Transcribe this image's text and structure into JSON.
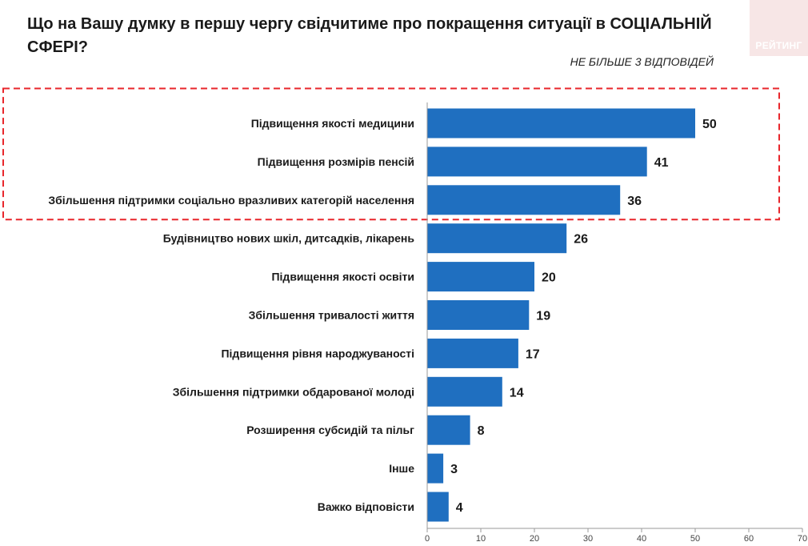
{
  "header": {
    "title": "Що на Вашу думку в першу чергу свідчитиме про покращення ситуації в СОЦІАЛЬНІЙ СФЕРІ?",
    "note": "НЕ БІЛЬШЕ 3 ВІДПОВІДЕЙ",
    "logo_text": "РЕЙТИНГ"
  },
  "colors": {
    "bar": "#1f6fc0",
    "highlight_border": "#e8262b",
    "axis": "#9a9a9a"
  },
  "chart_data": {
    "type": "bar",
    "orientation": "horizontal",
    "title": "Що на Вашу думку в першу чергу свідчитиме про покращення ситуації в СОЦІАЛЬНІЙ СФЕРІ?",
    "categories": [
      "Підвищення якості медицини",
      "Підвищення розмірів пенсій",
      "Збільшення підтримки соціально вразливих категорій населення",
      "Будівництво нових шкіл, дитсадків, лікарень",
      "Підвищення якості освіти",
      "Збільшення тривалості життя",
      "Підвищення рівня народжуваності",
      "Збільшення підтримки обдарованої молоді",
      "Розширення субсидій та пільг",
      "Інше",
      "Важко відповісти"
    ],
    "values": [
      50,
      41,
      36,
      26,
      20,
      19,
      17,
      14,
      8,
      3,
      4
    ],
    "xlim": [
      0,
      70
    ],
    "xticks": [
      0,
      10,
      20,
      30,
      40,
      50,
      60,
      70
    ],
    "highlighted_categories": [
      0,
      1,
      2
    ],
    "grid": false,
    "legend": "none"
  }
}
